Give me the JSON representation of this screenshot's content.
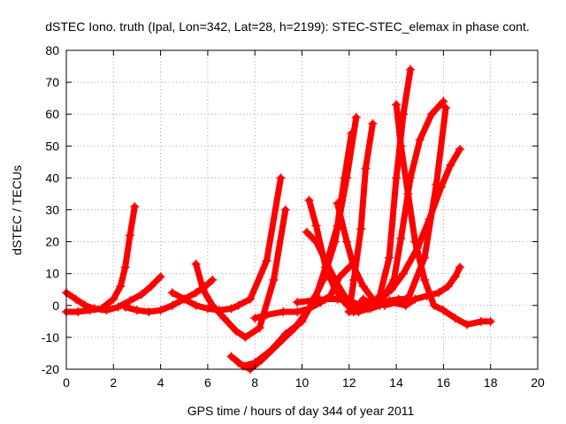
{
  "chart_data": {
    "type": "scatter",
    "title": "dSTEC Iono. truth (Ipal, Lon=342, Lat=28, h=2199): STEC-STEC_elemax in phase cont.",
    "xlabel": "GPS time / hours of day 344 of year 2011",
    "ylabel": "dSTEC  / TECUs",
    "xlim": [
      0,
      20
    ],
    "ylim": [
      -20,
      80
    ],
    "x_ticks": [
      "0",
      "2",
      "4",
      "6",
      "8",
      "10",
      "12",
      "14",
      "16",
      "18",
      "20"
    ],
    "y_ticks": [
      "-20",
      "-10",
      "0",
      "10",
      "20",
      "30",
      "40",
      "50",
      "60",
      "70",
      "80"
    ],
    "grid": true,
    "marker": "+",
    "color": "#ff0000",
    "series": [
      {
        "x": [
          0,
          0.5,
          1.0,
          1.5,
          2.0,
          2.3,
          2.5,
          2.7,
          2.9
        ],
        "y": [
          -2,
          -2,
          -1.5,
          -1,
          2,
          6,
          12,
          22,
          31
        ]
      },
      {
        "x": [
          0,
          0.4,
          0.8,
          1.2,
          1.7,
          2.2,
          2.7,
          3.2,
          3.6,
          4.0
        ],
        "y": [
          4,
          2,
          0,
          -1,
          -1.5,
          -0.5,
          1.5,
          3.5,
          6,
          9
        ]
      },
      {
        "x": [
          2.5,
          3.0,
          3.5,
          4.0,
          4.5,
          5.0,
          5.5,
          5.9,
          6.2
        ],
        "y": [
          -0.5,
          -1.5,
          -2,
          -1.5,
          0,
          2,
          4,
          6,
          8
        ]
      },
      {
        "x": [
          4.5,
          5.0,
          5.5,
          6.0,
          6.5,
          7.0,
          7.3,
          7.8,
          8.5,
          9.1
        ],
        "y": [
          4,
          2,
          0,
          -1,
          -1.5,
          -1,
          0,
          2,
          14,
          40
        ]
      },
      {
        "x": [
          5.5,
          5.8,
          6.2,
          6.7,
          7.2,
          7.6,
          8.2,
          8.8,
          9.3
        ],
        "y": [
          13,
          5,
          0,
          -4,
          -8,
          -10,
          -7,
          8,
          30
        ]
      },
      {
        "x": [
          7.0,
          7.5,
          8.0,
          8.7,
          9.3,
          10.0,
          10.6,
          11.0,
          11.5,
          11.8,
          12.1
        ],
        "y": [
          -16,
          -19,
          -18,
          -14,
          -9,
          -5,
          3,
          12,
          25,
          40,
          54
        ]
      },
      {
        "x": [
          7.3,
          7.8,
          8.3,
          9.0,
          9.7,
          10.3,
          10.9,
          11.4,
          11.9,
          12.3
        ],
        "y": [
          -18,
          -20,
          -17,
          -12,
          -7,
          -1,
          8,
          20,
          40,
          59
        ]
      },
      {
        "x": [
          8.0,
          8.5,
          9.2,
          9.8,
          10.3,
          10.8,
          11.2,
          11.6,
          12.0
        ],
        "y": [
          -4,
          -3,
          -2,
          -2,
          -1,
          1,
          3,
          9,
          12
        ]
      },
      {
        "x": [
          9.8,
          10.4,
          11.0,
          11.5,
          12.0,
          12.5,
          12.9,
          13.3,
          13.7,
          14.1,
          14.4
        ],
        "y": [
          1,
          1.5,
          2,
          2,
          1.5,
          0,
          -1,
          0,
          1.5,
          2,
          2
        ]
      },
      {
        "x": [
          10.3,
          10.6,
          11.0,
          11.4,
          11.8,
          12.2,
          12.6,
          13.0
        ],
        "y": [
          33,
          25,
          12,
          5,
          1,
          -2,
          2,
          0
        ]
      },
      {
        "x": [
          10.2,
          10.6,
          11.0,
          11.4,
          11.8,
          12.2,
          12.6,
          13.2,
          13.8,
          14.4
        ],
        "y": [
          23,
          20,
          14,
          8,
          3,
          -1,
          1,
          2,
          1,
          0
        ]
      },
      {
        "x": [
          11.5,
          11.9,
          12.2,
          12.6,
          13.0,
          13.5,
          14.0,
          14.5,
          15.2,
          15.7,
          16.1
        ],
        "y": [
          32,
          20,
          12,
          6,
          2,
          0,
          1,
          2,
          15,
          38,
          62
        ]
      },
      {
        "x": [
          12.0,
          12.4,
          12.8,
          13.3,
          13.8,
          14.3,
          14.9,
          15.4,
          15.9,
          16.3,
          16.7
        ],
        "y": [
          -2,
          -2,
          -1,
          2,
          5,
          10,
          18,
          27,
          37,
          44,
          49
        ]
      },
      {
        "x": [
          13.5,
          13.9,
          14.2,
          14.6,
          15.0,
          15.5,
          16.0
        ],
        "y": [
          3,
          8,
          21,
          40,
          52,
          60,
          64
        ]
      },
      {
        "x": [
          14.0,
          14.2,
          14.5,
          14.8,
          15.2,
          15.6,
          16.0,
          16.5,
          17.0,
          17.6,
          18.0
        ],
        "y": [
          63,
          50,
          35,
          20,
          8,
          0,
          -1.5,
          -4,
          -6,
          -5,
          -5
        ]
      },
      {
        "x": [
          14.4,
          14.8,
          15.3,
          15.8,
          16.2,
          16.5,
          16.7
        ],
        "y": [
          0,
          2,
          3,
          4,
          6,
          9,
          12
        ]
      },
      {
        "x": [
          12.8,
          13.3,
          13.7,
          14.0,
          14.3,
          14.6
        ],
        "y": [
          -1,
          3,
          15,
          40,
          60,
          74
        ]
      },
      {
        "x": [
          12.0,
          12.2,
          12.5,
          12.7,
          13.0
        ],
        "y": [
          -2,
          8,
          24,
          43,
          57
        ]
      }
    ]
  }
}
